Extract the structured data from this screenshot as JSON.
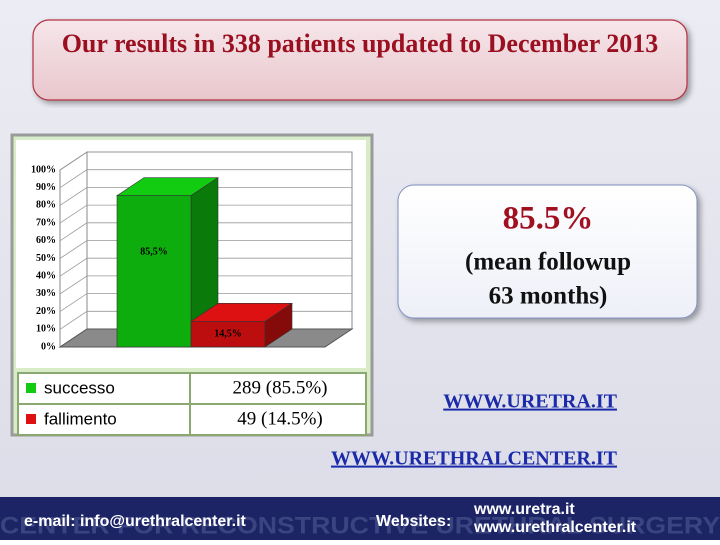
{
  "title": "Our results in 338 patients updated to December 2013",
  "chart_data": {
    "type": "bar3d",
    "categories": [
      "successo",
      "fallimento"
    ],
    "values": [
      85.5,
      14.5
    ],
    "value_labels": [
      "85,5%",
      "14,5%"
    ],
    "colors": [
      "#11cc11",
      "#dd1111"
    ],
    "table_values": [
      "289 (85.5%)",
      "49 (14.5%)"
    ],
    "ylim": [
      0,
      100
    ],
    "yticks": [
      {
        "value": 0,
        "label": "0%"
      },
      {
        "value": 10,
        "label": "10%"
      },
      {
        "value": 20,
        "label": "20%"
      },
      {
        "value": 30,
        "label": "30%"
      },
      {
        "value": 40,
        "label": "40%"
      },
      {
        "value": 50,
        "label": "50%"
      },
      {
        "value": 60,
        "label": "60%"
      },
      {
        "value": 70,
        "label": "70%"
      },
      {
        "value": 80,
        "label": "80%"
      },
      {
        "value": 90,
        "label": "90%"
      },
      {
        "value": 100,
        "label": "100%"
      }
    ],
    "grid": true
  },
  "callout": [
    "85.5%",
    "(mean followup",
    "63 months)"
  ],
  "links": [
    "WWW.URETRA.IT",
    "WWW.URETHRALCENTER.IT"
  ],
  "footer": {
    "email": "e-mail: info@urethralcenter.it",
    "websites_label": "Websites:",
    "websites": [
      "www.uretra.it",
      "www.urethralcenter.it"
    ],
    "background_text": "CENTER FOR RECONSTRUCTIVE URETHRAL SURGERY"
  }
}
